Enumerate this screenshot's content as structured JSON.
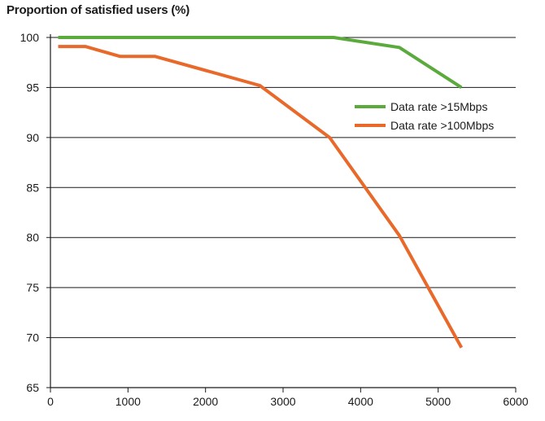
{
  "chart_data": {
    "type": "line",
    "title": "Proportion of satisfied users (%)",
    "xlabel": "",
    "ylabel": "",
    "xlim": [
      0,
      6000
    ],
    "ylim": [
      65,
      100
    ],
    "x_ticks": [
      0,
      1000,
      2000,
      3000,
      4000,
      5000,
      6000
    ],
    "y_ticks": [
      65,
      70,
      75,
      80,
      85,
      90,
      95,
      100
    ],
    "grid": "horizontal",
    "legend_position": "top-right",
    "series": [
      {
        "name": "Data rate >15Mbps",
        "color": "#5aab3c",
        "x": [
          100,
          3650,
          4500,
          5300
        ],
        "y": [
          100,
          100,
          99,
          95
        ]
      },
      {
        "name": "Data rate >100Mbps",
        "color": "#e8692a",
        "x": [
          100,
          450,
          900,
          1350,
          2700,
          3600,
          4500,
          5300
        ],
        "y": [
          99.1,
          99.1,
          98.1,
          98.1,
          95.2,
          90,
          80.2,
          69
        ]
      }
    ]
  }
}
